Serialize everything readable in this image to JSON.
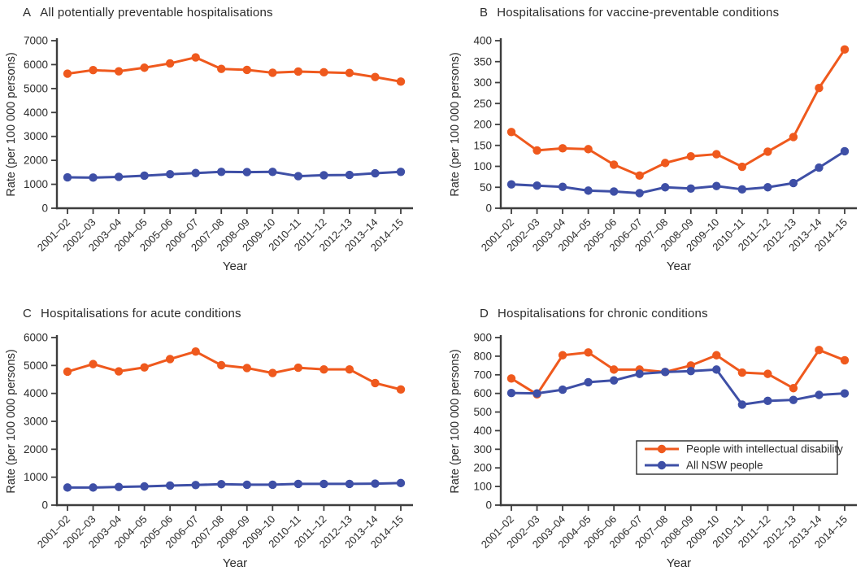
{
  "figure": {
    "y_axis_label": "Rate (per 100 000 persons)",
    "x_axis_label": "Year",
    "legend": {
      "position": "lower right of panel D",
      "items": [
        {
          "label": "People with intellectual disability",
          "color_key": "intellectual_disability",
          "marker": "circle-icon"
        },
        {
          "label": "All NSW people",
          "color_key": "all_nsw",
          "marker": "circle-icon"
        }
      ]
    }
  },
  "colors": {
    "intellectual_disability": "#ef591d",
    "all_nsw": "#3e4fa6",
    "axis": "#3d3d3d",
    "text": "#2b2b2b",
    "legend_border": "#2b2b2b",
    "background": "#ffffff"
  },
  "chart_data": [
    {
      "type": "line",
      "panel_letter": "A",
      "title": "All potentially preventable hospitalisations",
      "xlabel": "Year",
      "ylabel": "Rate (per 100 000 persons)",
      "ylim": [
        0,
        7000
      ],
      "ytick_step": 1000,
      "grid": false,
      "show_legend": false,
      "categories": [
        "2001–02",
        "2002–03",
        "2003–04",
        "2004–05",
        "2005–06",
        "2006–07",
        "2007–08",
        "2008–09",
        "2009–10",
        "2010–11",
        "2011–12",
        "2012–13",
        "2013–14",
        "2014–15"
      ],
      "series": [
        {
          "name": "People with intellectual disability",
          "color_key": "intellectual_disability",
          "values": [
            5620,
            5770,
            5720,
            5870,
            6050,
            6300,
            5820,
            5780,
            5660,
            5710,
            5680,
            5650,
            5480,
            5290
          ]
        },
        {
          "name": "All NSW people",
          "color_key": "all_nsw",
          "values": [
            1290,
            1280,
            1310,
            1360,
            1420,
            1470,
            1520,
            1510,
            1520,
            1340,
            1380,
            1390,
            1460,
            1520
          ]
        }
      ]
    },
    {
      "type": "line",
      "panel_letter": "B",
      "title": "Hospitalisations for vaccine-preventable conditions",
      "xlabel": "Year",
      "ylabel": "Rate (per 100 000 persons)",
      "ylim": [
        0,
        400
      ],
      "ytick_step": 50,
      "grid": false,
      "show_legend": false,
      "categories": [
        "2001–02",
        "2002–03",
        "2003–04",
        "2004–05",
        "2005–06",
        "2006–07",
        "2007–08",
        "2008–09",
        "2009–10",
        "2010–11",
        "2011–12",
        "2012–13",
        "2013–14",
        "2014–15"
      ],
      "series": [
        {
          "name": "People with intellectual disability",
          "color_key": "intellectual_disability",
          "values": [
            182,
            138,
            143,
            141,
            104,
            78,
            108,
            124,
            129,
            99,
            135,
            170,
            287,
            379
          ]
        },
        {
          "name": "All NSW people",
          "color_key": "all_nsw",
          "values": [
            57,
            54,
            51,
            42,
            40,
            36,
            50,
            47,
            53,
            45,
            50,
            60,
            97,
            136
          ]
        }
      ]
    },
    {
      "type": "line",
      "panel_letter": "C",
      "title": "Hospitalisations for acute conditions",
      "xlabel": "Year",
      "ylabel": "Rate (per 100 000 persons)",
      "ylim": [
        0,
        6000
      ],
      "ytick_step": 1000,
      "grid": false,
      "show_legend": false,
      "categories": [
        "2001–02",
        "2002–03",
        "2003–04",
        "2004–05",
        "2005–06",
        "2006–07",
        "2007–08",
        "2008–09",
        "2009–10",
        "2010–11",
        "2011–12",
        "2012–13",
        "2013–14",
        "2014–15"
      ],
      "series": [
        {
          "name": "People with intellectual disability",
          "color_key": "intellectual_disability",
          "values": [
            4780,
            5050,
            4790,
            4930,
            5230,
            5500,
            5010,
            4910,
            4730,
            4920,
            4860,
            4860,
            4370,
            4140
          ]
        },
        {
          "name": "All NSW people",
          "color_key": "all_nsw",
          "values": [
            630,
            630,
            650,
            670,
            700,
            720,
            750,
            730,
            730,
            760,
            760,
            760,
            770,
            790
          ]
        }
      ]
    },
    {
      "type": "line",
      "panel_letter": "D",
      "title": "Hospitalisations for chronic conditions",
      "xlabel": "Year",
      "ylabel": "Rate (per 100 000 persons)",
      "ylim": [
        0,
        900
      ],
      "ytick_step": 100,
      "grid": false,
      "show_legend": true,
      "categories": [
        "2001–02",
        "2002–03",
        "2003–04",
        "2004–05",
        "2005–06",
        "2006–07",
        "2007–08",
        "2008–09",
        "2009–10",
        "2010–11",
        "2011–12",
        "2012–13",
        "2013–14",
        "2014–15"
      ],
      "series": [
        {
          "name": "People with intellectual disability",
          "color_key": "intellectual_disability",
          "values": [
            680,
            595,
            805,
            820,
            728,
            728,
            715,
            750,
            805,
            712,
            705,
            628,
            833,
            778
          ]
        },
        {
          "name": "All NSW people",
          "color_key": "all_nsw",
          "values": [
            602,
            600,
            620,
            660,
            670,
            705,
            715,
            720,
            728,
            540,
            560,
            565,
            592,
            600
          ]
        }
      ]
    }
  ]
}
